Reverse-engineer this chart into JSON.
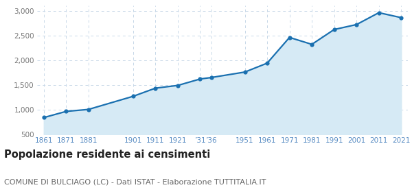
{
  "years": [
    1861,
    1871,
    1881,
    1901,
    1911,
    1921,
    1931,
    1936,
    1951,
    1961,
    1971,
    1981,
    1991,
    2001,
    2011,
    2021
  ],
  "xtick_labels": [
    "1861",
    "1871",
    "1881",
    "1901",
    "1911",
    "1921",
    "’31",
    "’36",
    "1951",
    "1961",
    "1971",
    "1981",
    "1991",
    "2001",
    "2011",
    "2021"
  ],
  "population": [
    840,
    965,
    1005,
    1270,
    1435,
    1490,
    1620,
    1650,
    1760,
    1940,
    2460,
    2320,
    2620,
    2720,
    2960,
    2860
  ],
  "ylim": [
    500,
    3100
  ],
  "yticks": [
    500,
    1000,
    1500,
    2000,
    2500,
    3000
  ],
  "line_color": "#1a70b0",
  "fill_color": "#d6eaf5",
  "marker_color": "#1a70b0",
  "bg_color": "#ffffff",
  "grid_color": "#c8d8e8",
  "xtick_color": "#5b8ec4",
  "ytick_color": "#777777",
  "title": "Popolazione residente ai censimenti",
  "subtitle": "COMUNE DI BULCIAGO (LC) - Dati ISTAT - Elaborazione TUTTITALIA.IT",
  "title_fontsize": 10.5,
  "subtitle_fontsize": 8.0
}
